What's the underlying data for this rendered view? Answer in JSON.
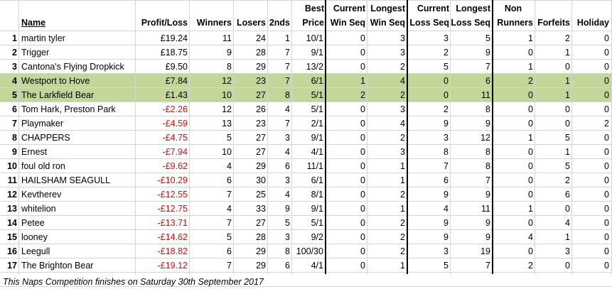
{
  "headers": {
    "name": "Name",
    "profit_loss": "Profit/Loss",
    "winners": "Winners",
    "losers": "Losers",
    "seconds": "2nds",
    "best_price_1": "Best",
    "best_price_2": "Price",
    "current_win_1": "Current",
    "current_win_2": "Win Seq",
    "longest_win_1": "Longest",
    "longest_win_2": "Win Seq",
    "current_loss_1": "Current",
    "current_loss_2": "Loss Seq",
    "longest_loss_1": "Longest",
    "longest_loss_2": "Loss Seq",
    "non_runners_1": "Non",
    "non_runners_2": "Runners",
    "forfeits": "Forfeits",
    "holiday": "Holiday"
  },
  "rows": [
    {
      "rank": "1",
      "name": "martin tyler",
      "pl": "£19.24",
      "neg": false,
      "winners": "11",
      "losers": "24",
      "seconds": "1",
      "best": "10/1",
      "cws": "0",
      "lws": "3",
      "cls": "3",
      "lls": "5",
      "nr": "1",
      "forfeits": "2",
      "holiday": "0",
      "hl": false
    },
    {
      "rank": "2",
      "name": "Trigger",
      "pl": "£18.75",
      "neg": false,
      "winners": "9",
      "losers": "28",
      "seconds": "7",
      "best": "9/1",
      "cws": "0",
      "lws": "3",
      "cls": "2",
      "lls": "9",
      "nr": "0",
      "forfeits": "1",
      "holiday": "0",
      "hl": false
    },
    {
      "rank": "3",
      "name": "Cantona's Flying Dropkick",
      "pl": "£9.50",
      "neg": false,
      "winners": "8",
      "losers": "29",
      "seconds": "7",
      "best": "13/2",
      "cws": "0",
      "lws": "2",
      "cls": "5",
      "lls": "7",
      "nr": "1",
      "forfeits": "0",
      "holiday": "0",
      "hl": false
    },
    {
      "rank": "4",
      "name": "Westport to Hove",
      "pl": "£7.84",
      "neg": false,
      "winners": "12",
      "losers": "23",
      "seconds": "7",
      "best": "6/1",
      "cws": "1",
      "lws": "4",
      "cls": "0",
      "lls": "6",
      "nr": "2",
      "forfeits": "1",
      "holiday": "0",
      "hl": true
    },
    {
      "rank": "5",
      "name": "The Larkfield Bear",
      "pl": "£1.43",
      "neg": false,
      "winners": "10",
      "losers": "27",
      "seconds": "8",
      "best": "5/1",
      "cws": "2",
      "lws": "2",
      "cls": "0",
      "lls": "11",
      "nr": "0",
      "forfeits": "1",
      "holiday": "0",
      "hl": true
    },
    {
      "rank": "6",
      "name": "Tom Hark, Preston Park",
      "pl": "-£2.26",
      "neg": true,
      "winners": "12",
      "losers": "26",
      "seconds": "4",
      "best": "5/1",
      "cws": "0",
      "lws": "3",
      "cls": "2",
      "lls": "8",
      "nr": "0",
      "forfeits": "0",
      "holiday": "0",
      "hl": false
    },
    {
      "rank": "7",
      "name": "Playmaker",
      "pl": "-£4.59",
      "neg": true,
      "winners": "13",
      "losers": "23",
      "seconds": "7",
      "best": "2/1",
      "cws": "0",
      "lws": "4",
      "cls": "9",
      "lls": "9",
      "nr": "0",
      "forfeits": "0",
      "holiday": "2",
      "hl": false
    },
    {
      "rank": "8",
      "name": "CHAPPERS",
      "pl": "-£4.75",
      "neg": true,
      "winners": "5",
      "losers": "27",
      "seconds": "3",
      "best": "9/1",
      "cws": "0",
      "lws": "2",
      "cls": "3",
      "lls": "12",
      "nr": "1",
      "forfeits": "5",
      "holiday": "0",
      "hl": false
    },
    {
      "rank": "9",
      "name": "Ernest",
      "pl": "-£7.94",
      "neg": true,
      "winners": "10",
      "losers": "27",
      "seconds": "4",
      "best": "4/1",
      "cws": "0",
      "lws": "3",
      "cls": "8",
      "lls": "8",
      "nr": "0",
      "forfeits": "1",
      "holiday": "0",
      "hl": false
    },
    {
      "rank": "10",
      "name": "foul old ron",
      "pl": "-£9.62",
      "neg": true,
      "winners": "4",
      "losers": "29",
      "seconds": "6",
      "best": "11/1",
      "cws": "0",
      "lws": "1",
      "cls": "7",
      "lls": "8",
      "nr": "0",
      "forfeits": "5",
      "holiday": "0",
      "hl": false
    },
    {
      "rank": "11",
      "name": "HAILSHAM SEAGULL",
      "pl": "-£10.29",
      "neg": true,
      "winners": "6",
      "losers": "30",
      "seconds": "3",
      "best": "6/1",
      "cws": "0",
      "lws": "1",
      "cls": "6",
      "lls": "7",
      "nr": "0",
      "forfeits": "2",
      "holiday": "0",
      "hl": false
    },
    {
      "rank": "12",
      "name": "Kevtherev",
      "pl": "-£12.55",
      "neg": true,
      "winners": "7",
      "losers": "25",
      "seconds": "4",
      "best": "8/1",
      "cws": "0",
      "lws": "2",
      "cls": "9",
      "lls": "9",
      "nr": "0",
      "forfeits": "6",
      "holiday": "0",
      "hl": false
    },
    {
      "rank": "13",
      "name": "whitelion",
      "pl": "-£12.75",
      "neg": true,
      "winners": "4",
      "losers": "33",
      "seconds": "9",
      "best": "9/1",
      "cws": "0",
      "lws": "1",
      "cls": "4",
      "lls": "11",
      "nr": "1",
      "forfeits": "0",
      "holiday": "0",
      "hl": false
    },
    {
      "rank": "14",
      "name": "Petee",
      "pl": "-£13.71",
      "neg": true,
      "winners": "7",
      "losers": "27",
      "seconds": "5",
      "best": "5/1",
      "cws": "0",
      "lws": "2",
      "cls": "9",
      "lls": "9",
      "nr": "0",
      "forfeits": "4",
      "holiday": "0",
      "hl": false
    },
    {
      "rank": "15",
      "name": "looney",
      "pl": "-£14.62",
      "neg": true,
      "winners": "5",
      "losers": "28",
      "seconds": "3",
      "best": "9/2",
      "cws": "0",
      "lws": "2",
      "cls": "9",
      "lls": "9",
      "nr": "4",
      "forfeits": "1",
      "holiday": "0",
      "hl": false
    },
    {
      "rank": "16",
      "name": "Leegull",
      "pl": "-£18.82",
      "neg": true,
      "winners": "6",
      "losers": "29",
      "seconds": "8",
      "best": "100/30",
      "cws": "0",
      "lws": "2",
      "cls": "3",
      "lls": "19",
      "nr": "0",
      "forfeits": "3",
      "holiday": "0",
      "hl": false
    },
    {
      "rank": "17",
      "name": "The Brighton Bear",
      "pl": "-£19.12",
      "neg": true,
      "winners": "7",
      "losers": "29",
      "seconds": "6",
      "best": "4/1",
      "cws": "0",
      "lws": "1",
      "cls": "5",
      "lls": "7",
      "nr": "2",
      "forfeits": "0",
      "holiday": "0",
      "hl": false
    }
  ],
  "footer_note": "This Naps Competition finishes on Saturday 30th September 2017",
  "colors": {
    "highlight": "#c4d79b",
    "negative": "#ff0000",
    "grid": "#d4d4d4"
  }
}
